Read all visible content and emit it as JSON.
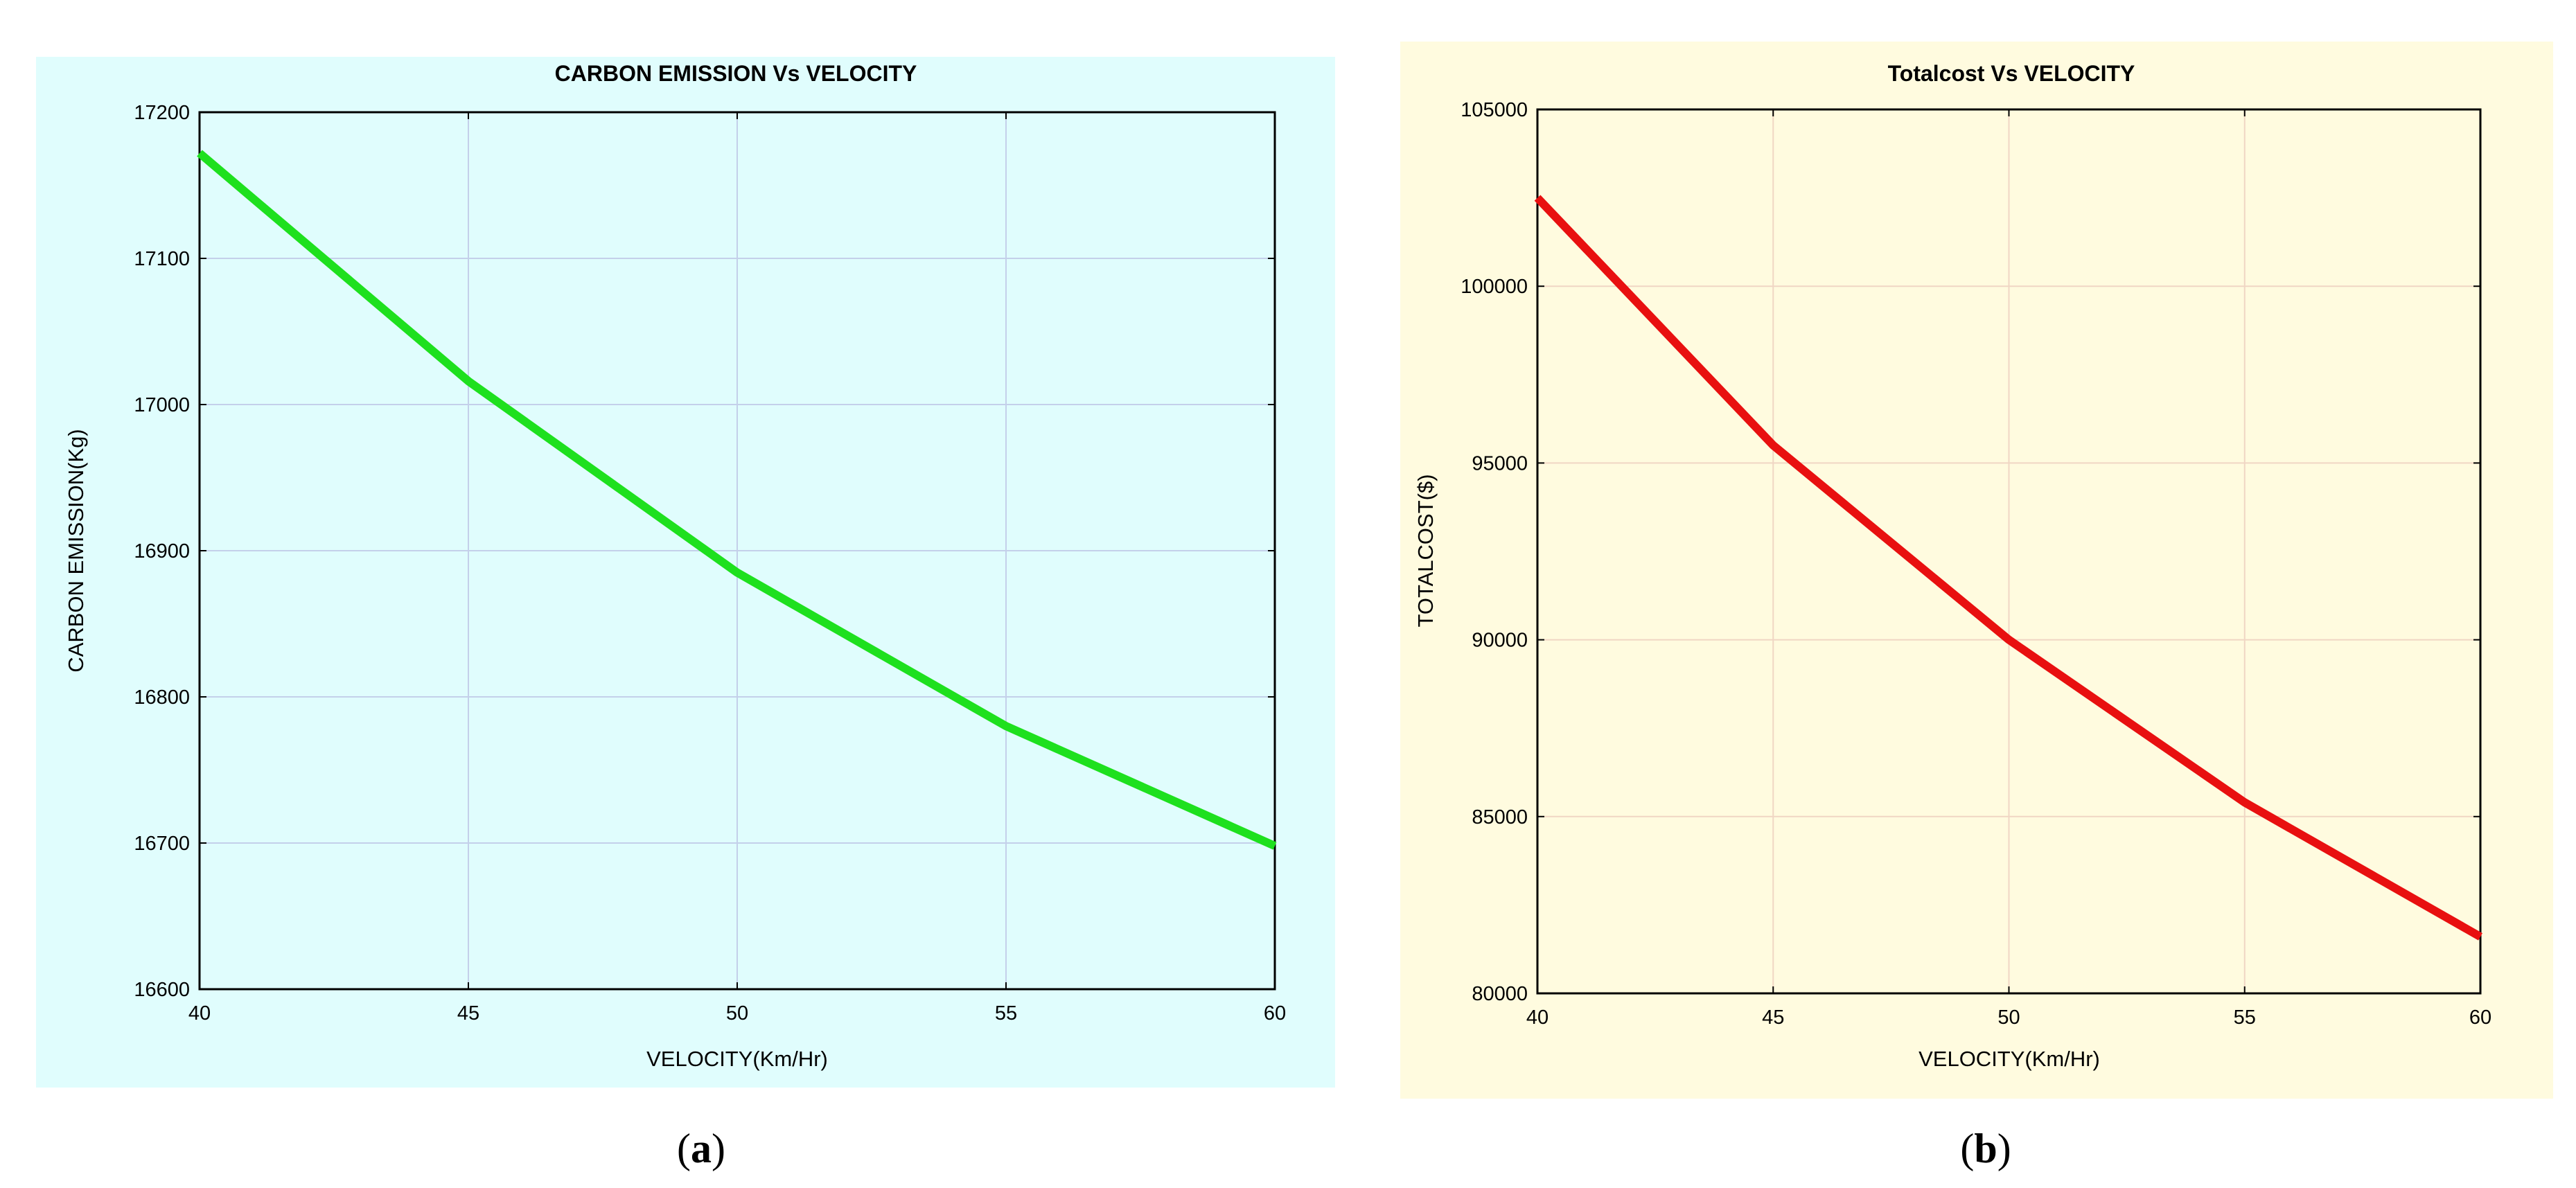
{
  "chart_data": [
    {
      "type": "line",
      "title": "CARBON EMISSION Vs VELOCITY",
      "xlabel": "VELOCITY(Km/Hr)",
      "ylabel": "CARBON EMISSION(Kg)",
      "x": [
        40,
        45,
        50,
        55,
        60
      ],
      "xticks": [
        40,
        45,
        50,
        55,
        60
      ],
      "xlim": [
        40,
        60
      ],
      "yticks": [
        16600,
        16700,
        16800,
        16900,
        17000,
        17100,
        17200
      ],
      "ylim": [
        16600,
        17200
      ],
      "grid": true,
      "series": [
        {
          "name": "Carbon emission",
          "values": [
            17172,
            17016,
            16885,
            16780,
            16698
          ],
          "color": "#1ee01e"
        }
      ],
      "background": "#e0fdfd",
      "caption_open": "(",
      "caption_letter": "a",
      "caption_close": ")"
    },
    {
      "type": "line",
      "title": "Totalcost Vs VELOCITY",
      "xlabel": "VELOCITY(Km/Hr)",
      "ylabel": "TOTALCOST($)",
      "x": [
        40,
        45,
        50,
        55,
        60
      ],
      "xticks": [
        40,
        45,
        50,
        55,
        60
      ],
      "xlim": [
        40,
        60
      ],
      "yticks": [
        80000,
        85000,
        90000,
        95000,
        100000,
        105000
      ],
      "ylim": [
        80000,
        105000
      ],
      "grid": true,
      "series": [
        {
          "name": "Total cost",
          "values": [
            102500,
            95500,
            90000,
            85400,
            81600
          ],
          "color": "#e81010"
        }
      ],
      "background": "#fffbdf",
      "caption_open": "(",
      "caption_letter": "b",
      "caption_close": ")"
    }
  ]
}
